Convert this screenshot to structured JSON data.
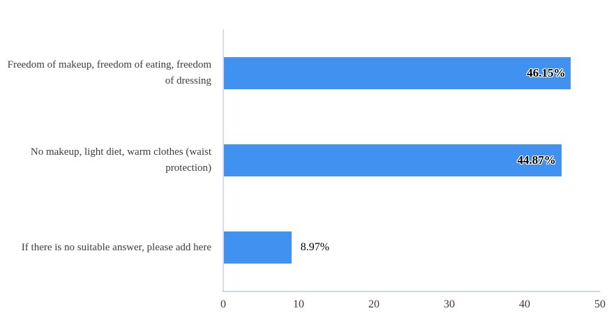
{
  "chart_data": {
    "type": "bar",
    "orientation": "horizontal",
    "title": "",
    "categories": [
      "Freedom of makeup, freedom of eating, freedom of dressing",
      "No makeup, light diet, warm clothes (waist protection)",
      "If there is no suitable answer, please add here"
    ],
    "values": [
      46.15,
      44.87,
      8.97
    ],
    "value_labels": [
      "46.15%",
      "44.87%",
      "8.97%"
    ],
    "xlim": [
      0,
      50
    ],
    "x_ticks": [
      "0",
      "10",
      "20",
      "30",
      "40",
      "50"
    ],
    "bar_color": "#4191f1",
    "axis_color": "#d5dcec",
    "grid": false,
    "legend": false,
    "inside_label_threshold_pct": 25
  }
}
